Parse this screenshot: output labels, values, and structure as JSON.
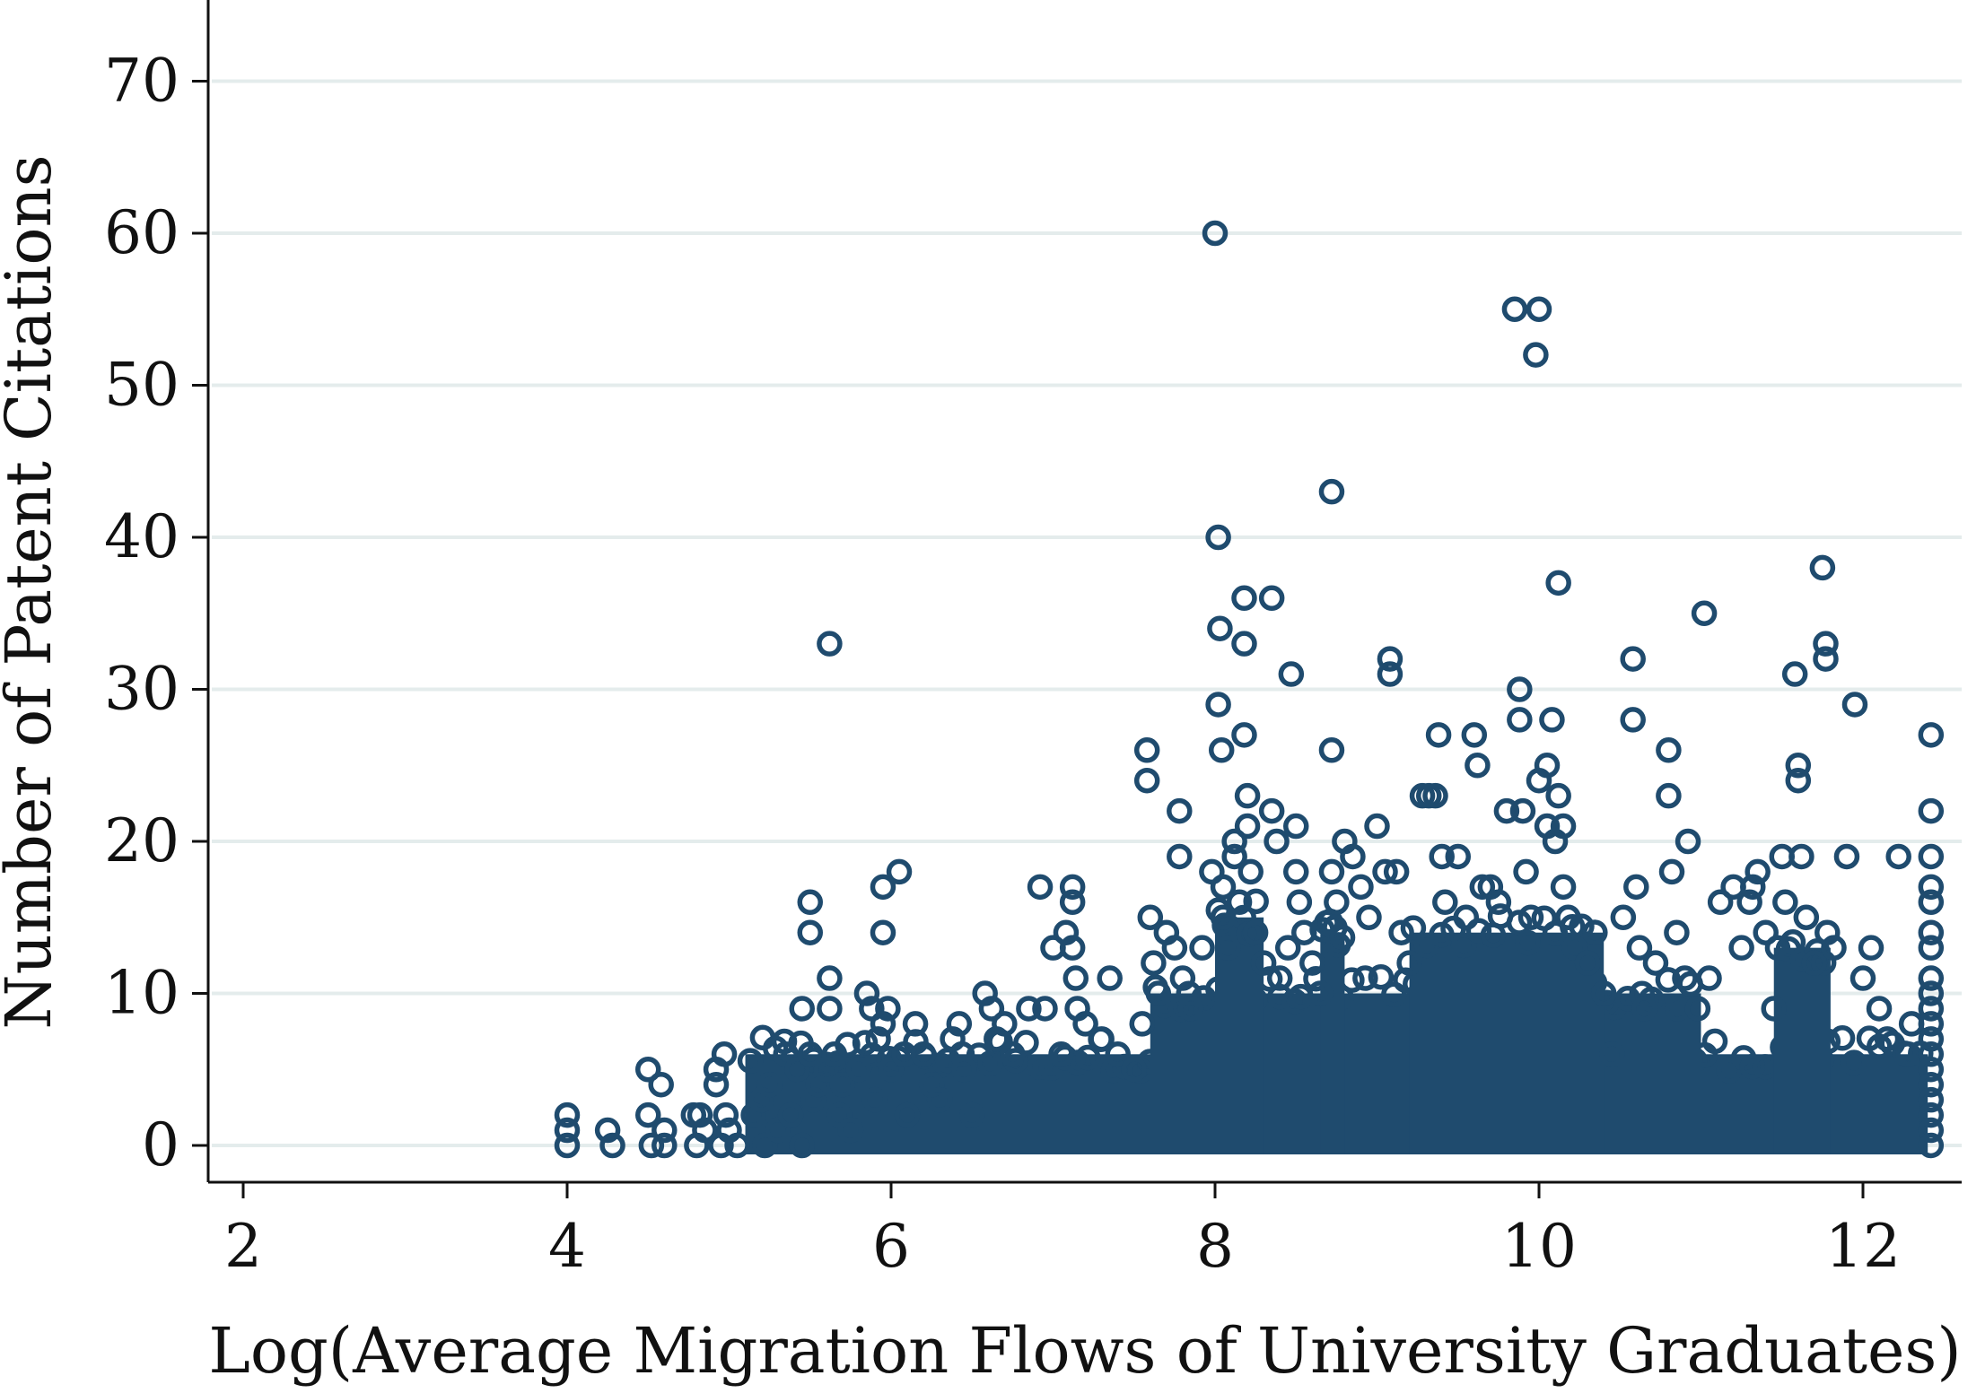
{
  "chart_data": {
    "type": "scatter",
    "xlabel": "Log(Average Migration Flows of University Graduates)",
    "ylabel": "Number of Patent Citations",
    "xlim": [
      1.8,
      12.6
    ],
    "ylim": [
      -2.2,
      75
    ],
    "xticks": [
      2,
      4,
      6,
      8,
      10,
      12
    ],
    "yticks": [
      0,
      10,
      20,
      30,
      40,
      50,
      60,
      70
    ],
    "xtick_labels": [
      "2",
      "4",
      "6",
      "8",
      "10",
      "12"
    ],
    "ytick_labels": [
      "0",
      "10",
      "20",
      "30",
      "40",
      "50",
      "60",
      "70"
    ],
    "grid": true,
    "marker": "hollow-circle",
    "color": "#1f4b6e",
    "series": [
      {
        "points": [
          [
            4.0,
            0
          ],
          [
            4.0,
            1
          ],
          [
            4.0,
            2
          ],
          [
            4.25,
            1
          ],
          [
            4.28,
            0
          ],
          [
            4.5,
            5
          ],
          [
            4.5,
            2
          ],
          [
            4.52,
            0
          ],
          [
            4.58,
            4
          ],
          [
            4.6,
            1
          ],
          [
            4.6,
            0
          ],
          [
            4.78,
            2
          ],
          [
            4.8,
            0
          ],
          [
            4.85,
            1
          ],
          [
            4.82,
            2
          ],
          [
            4.92,
            5
          ],
          [
            4.92,
            4
          ],
          [
            4.95,
            0
          ],
          [
            4.97,
            6
          ],
          [
            4.98,
            2
          ],
          [
            5.0,
            1
          ],
          [
            5.05,
            0
          ],
          [
            5.15,
            2
          ],
          [
            5.2,
            3
          ],
          [
            5.22,
            0
          ],
          [
            5.25,
            4
          ],
          [
            5.3,
            1
          ],
          [
            5.35,
            6
          ],
          [
            5.38,
            2
          ],
          [
            5.42,
            5
          ],
          [
            5.45,
            9
          ],
          [
            5.45,
            0
          ],
          [
            5.5,
            16
          ],
          [
            5.5,
            14
          ],
          [
            5.5,
            6
          ],
          [
            5.52,
            3
          ],
          [
            5.55,
            4
          ],
          [
            5.6,
            5
          ],
          [
            5.62,
            33
          ],
          [
            5.62,
            11
          ],
          [
            5.62,
            9
          ],
          [
            5.65,
            6
          ],
          [
            5.68,
            2
          ],
          [
            5.7,
            4
          ],
          [
            5.75,
            1
          ],
          [
            5.8,
            5
          ],
          [
            5.85,
            10
          ],
          [
            5.88,
            9
          ],
          [
            5.9,
            3
          ],
          [
            5.92,
            7
          ],
          [
            5.95,
            17
          ],
          [
            5.95,
            14
          ],
          [
            5.95,
            8
          ],
          [
            5.98,
            9
          ],
          [
            6.0,
            5
          ],
          [
            6.05,
            18
          ],
          [
            6.08,
            6
          ],
          [
            6.1,
            2
          ],
          [
            6.15,
            8
          ],
          [
            6.2,
            6
          ],
          [
            6.25,
            4
          ],
          [
            6.3,
            3
          ],
          [
            6.38,
            7
          ],
          [
            6.42,
            8
          ],
          [
            6.45,
            5
          ],
          [
            6.5,
            2
          ],
          [
            6.58,
            10
          ],
          [
            6.62,
            9
          ],
          [
            6.65,
            7
          ],
          [
            6.7,
            8
          ],
          [
            6.75,
            6
          ],
          [
            6.85,
            9
          ],
          [
            6.92,
            17
          ],
          [
            6.95,
            9
          ],
          [
            7.0,
            13
          ],
          [
            7.05,
            6
          ],
          [
            7.08,
            14
          ],
          [
            7.12,
            17
          ],
          [
            7.12,
            16
          ],
          [
            7.12,
            13
          ],
          [
            7.14,
            11
          ],
          [
            7.15,
            9
          ],
          [
            7.2,
            8
          ],
          [
            7.3,
            7
          ],
          [
            7.35,
            11
          ],
          [
            7.4,
            6
          ],
          [
            7.5,
            5
          ],
          [
            7.55,
            8
          ],
          [
            7.58,
            26
          ],
          [
            7.58,
            24
          ],
          [
            7.6,
            15
          ],
          [
            7.62,
            12
          ],
          [
            7.65,
            10
          ],
          [
            7.7,
            14
          ],
          [
            7.75,
            13
          ],
          [
            7.78,
            22
          ],
          [
            7.78,
            19
          ],
          [
            7.8,
            11
          ],
          [
            7.85,
            9
          ],
          [
            7.92,
            13
          ],
          [
            7.98,
            18
          ],
          [
            8.0,
            60
          ],
          [
            8.02,
            40
          ],
          [
            8.03,
            34
          ],
          [
            8.02,
            29
          ],
          [
            8.04,
            26
          ],
          [
            8.05,
            17
          ],
          [
            8.05,
            15
          ],
          [
            8.08,
            13
          ],
          [
            8.12,
            19
          ],
          [
            8.12,
            20
          ],
          [
            8.15,
            16
          ],
          [
            8.18,
            36
          ],
          [
            8.18,
            33
          ],
          [
            8.18,
            27
          ],
          [
            8.2,
            23
          ],
          [
            8.2,
            21
          ],
          [
            8.22,
            18
          ],
          [
            8.25,
            14
          ],
          [
            8.3,
            12
          ],
          [
            8.35,
            36
          ],
          [
            8.35,
            22
          ],
          [
            8.38,
            20
          ],
          [
            8.4,
            11
          ],
          [
            8.45,
            13
          ],
          [
            8.47,
            31
          ],
          [
            8.5,
            21
          ],
          [
            8.5,
            18
          ],
          [
            8.52,
            16
          ],
          [
            8.55,
            14
          ],
          [
            8.6,
            12
          ],
          [
            8.65,
            10
          ],
          [
            8.72,
            43
          ],
          [
            8.72,
            26
          ],
          [
            8.72,
            18
          ],
          [
            8.75,
            16
          ],
          [
            8.8,
            20
          ],
          [
            8.85,
            19
          ],
          [
            8.9,
            17
          ],
          [
            8.95,
            15
          ],
          [
            9.0,
            21
          ],
          [
            9.05,
            18
          ],
          [
            9.08,
            32
          ],
          [
            9.08,
            31
          ],
          [
            9.12,
            18
          ],
          [
            9.15,
            14
          ],
          [
            9.2,
            12
          ],
          [
            9.28,
            23
          ],
          [
            9.32,
            23
          ],
          [
            9.36,
            23
          ],
          [
            9.38,
            27
          ],
          [
            9.4,
            19
          ],
          [
            9.42,
            16
          ],
          [
            9.5,
            19
          ],
          [
            9.55,
            15
          ],
          [
            9.6,
            27
          ],
          [
            9.62,
            25
          ],
          [
            9.65,
            17
          ],
          [
            9.7,
            17
          ],
          [
            9.75,
            16
          ],
          [
            9.8,
            22
          ],
          [
            9.85,
            55
          ],
          [
            9.88,
            30
          ],
          [
            9.88,
            28
          ],
          [
            9.9,
            22
          ],
          [
            9.92,
            18
          ],
          [
            9.95,
            15
          ],
          [
            10.0,
            55
          ],
          [
            9.98,
            52
          ],
          [
            10.0,
            24
          ],
          [
            10.05,
            25
          ],
          [
            10.05,
            21
          ],
          [
            10.08,
            28
          ],
          [
            10.1,
            20
          ],
          [
            10.12,
            37
          ],
          [
            10.12,
            23
          ],
          [
            10.15,
            21
          ],
          [
            10.15,
            17
          ],
          [
            10.18,
            15
          ],
          [
            10.22,
            13
          ],
          [
            10.3,
            12
          ],
          [
            10.4,
            10
          ],
          [
            10.45,
            6
          ],
          [
            10.52,
            15
          ],
          [
            10.58,
            32
          ],
          [
            10.58,
            28
          ],
          [
            10.6,
            17
          ],
          [
            10.62,
            13
          ],
          [
            10.65,
            9
          ],
          [
            10.72,
            12
          ],
          [
            10.8,
            26
          ],
          [
            10.8,
            23
          ],
          [
            10.82,
            18
          ],
          [
            10.85,
            14
          ],
          [
            10.9,
            11
          ],
          [
            10.92,
            20
          ],
          [
            10.98,
            9
          ],
          [
            11.02,
            35
          ],
          [
            11.05,
            11
          ],
          [
            11.12,
            16
          ],
          [
            11.2,
            17
          ],
          [
            11.25,
            13
          ],
          [
            11.3,
            16
          ],
          [
            11.32,
            17
          ],
          [
            11.35,
            18
          ],
          [
            11.4,
            14
          ],
          [
            11.45,
            9
          ],
          [
            11.5,
            19
          ],
          [
            11.52,
            16
          ],
          [
            11.58,
            31
          ],
          [
            11.6,
            25
          ],
          [
            11.6,
            24
          ],
          [
            11.62,
            19
          ],
          [
            11.65,
            15
          ],
          [
            11.7,
            12
          ],
          [
            11.75,
            38
          ],
          [
            11.77,
            33
          ],
          [
            11.77,
            32
          ],
          [
            11.78,
            14
          ],
          [
            11.82,
            13
          ],
          [
            11.9,
            19
          ],
          [
            11.95,
            29
          ],
          [
            12.0,
            11
          ],
          [
            12.05,
            13
          ],
          [
            12.1,
            9
          ],
          [
            12.15,
            7
          ],
          [
            12.22,
            19
          ],
          [
            12.28,
            6
          ],
          [
            12.3,
            8
          ],
          [
            12.42,
            27
          ],
          [
            12.42,
            22
          ],
          [
            12.42,
            19
          ],
          [
            12.42,
            17
          ],
          [
            12.42,
            16
          ],
          [
            12.42,
            14
          ],
          [
            12.42,
            13
          ],
          [
            12.42,
            11
          ],
          [
            12.42,
            10
          ],
          [
            12.42,
            9
          ],
          [
            12.42,
            8
          ],
          [
            12.42,
            7
          ],
          [
            12.42,
            6
          ],
          [
            12.42,
            5
          ],
          [
            12.42,
            4
          ],
          [
            12.42,
            3
          ],
          [
            12.42,
            2
          ],
          [
            12.42,
            1
          ],
          [
            12.42,
            0
          ]
        ],
        "dense_regions": [
          {
            "x": [
              5.1,
              12.4
            ],
            "y": [
              0,
              6
            ]
          },
          {
            "x": [
              7.6,
              11.0
            ],
            "y": [
              0,
              10
            ]
          },
          {
            "x": [
              9.2,
              10.4
            ],
            "y": [
              0,
              14
            ]
          },
          {
            "x": [
              8.0,
              8.3
            ],
            "y": [
              0,
              15
            ]
          },
          {
            "x": [
              8.65,
              8.8
            ],
            "y": [
              0,
              14
            ]
          },
          {
            "x": [
              11.45,
              11.8
            ],
            "y": [
              0,
              13
            ]
          }
        ]
      }
    ]
  }
}
